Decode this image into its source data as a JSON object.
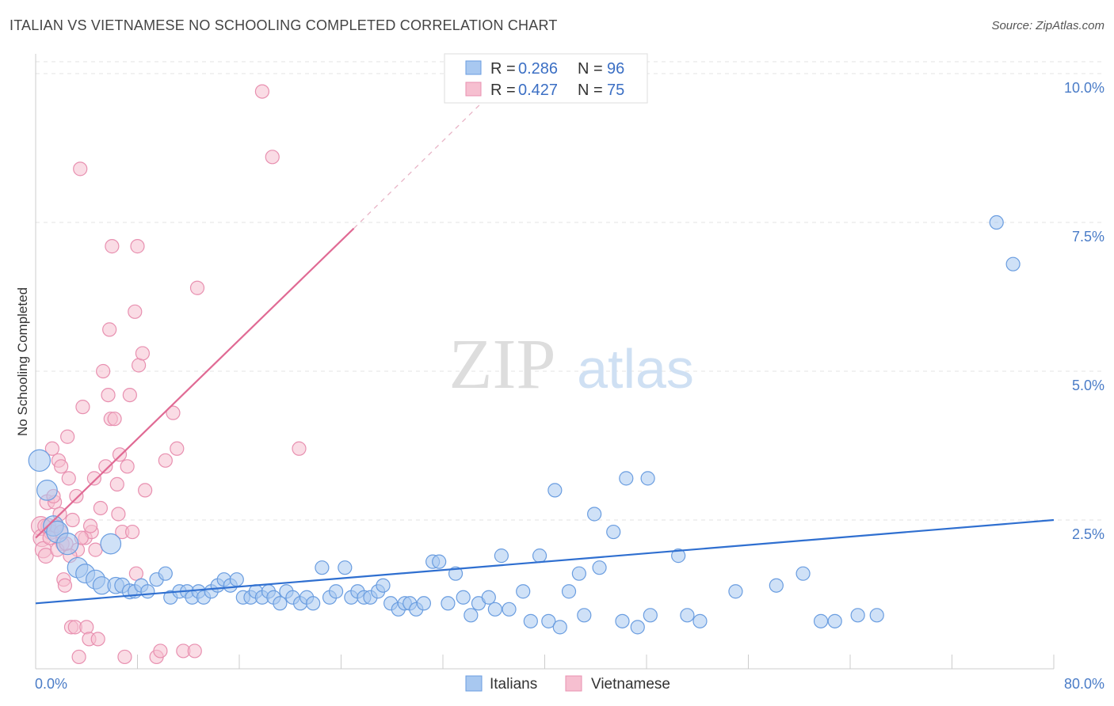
{
  "title": "ITALIAN VS VIETNAMESE NO SCHOOLING COMPLETED CORRELATION CHART",
  "source": "Source: ZipAtlas.com",
  "watermark": {
    "zip": "ZIP",
    "atlas": "atlas"
  },
  "colors": {
    "italians_fill": "#a8c8f0",
    "italians_stroke": "#6a9de0",
    "italians_line": "#2f6fd0",
    "vietnamese_fill": "#f6bfd0",
    "vietnamese_stroke": "#e890b0",
    "vietnamese_line": "#e06a94",
    "axis_label": "#4a7cc7"
  },
  "legend_top": {
    "rows": [
      {
        "r_label": "R =",
        "r_value": "0.286",
        "n_label": "N =",
        "n_value": "96"
      },
      {
        "r_label": "R =",
        "r_value": "0.427",
        "n_label": "N =",
        "n_value": "75"
      }
    ]
  },
  "legend_bottom": [
    "Italians",
    "Vietnamese"
  ],
  "chart_data": {
    "type": "scatter",
    "title": "ITALIAN VS VIETNAMESE NO SCHOOLING COMPLETED CORRELATION CHART",
    "ylabel": "No Schooling Completed",
    "xlim": [
      0,
      80
    ],
    "ylim": [
      0,
      10.2
    ],
    "x_tick_labels": [
      "0.0%",
      "80.0%"
    ],
    "y_tick_labels": [
      "2.5%",
      "5.0%",
      "7.5%",
      "10.0%"
    ],
    "y_ticks": [
      2.5,
      5.0,
      7.5,
      10.0
    ],
    "grid": true,
    "legend_position": "top-center",
    "series": [
      {
        "name": "Italians",
        "R": 0.286,
        "N": 96,
        "trend": {
          "x0": 0,
          "y0": 1.1,
          "x1": 80,
          "y1": 2.5,
          "dashed_after": null
        },
        "points": [
          [
            0.3,
            3.5,
            1.6
          ],
          [
            0.9,
            3.0,
            1.5
          ],
          [
            1.4,
            2.4,
            1.5
          ],
          [
            1.7,
            2.3,
            1.6
          ],
          [
            2.5,
            2.1,
            1.6
          ],
          [
            3.3,
            1.7,
            1.5
          ],
          [
            5.9,
            2.1,
            1.5
          ],
          [
            3.9,
            1.6,
            1.4
          ],
          [
            4.7,
            1.5,
            1.4
          ],
          [
            5.2,
            1.4,
            1.3
          ],
          [
            6.3,
            1.4,
            1.2
          ],
          [
            6.8,
            1.4,
            1.1
          ],
          [
            7.4,
            1.3,
            1.1
          ],
          [
            7.8,
            1.3,
            1.0
          ],
          [
            8.3,
            1.4,
            1.0
          ],
          [
            8.8,
            1.3,
            1.0
          ],
          [
            9.5,
            1.5,
            1.0
          ],
          [
            10.2,
            1.6,
            1.0
          ],
          [
            10.6,
            1.2,
            1.0
          ],
          [
            11.3,
            1.3,
            1.0
          ],
          [
            11.9,
            1.3,
            1.0
          ],
          [
            12.3,
            1.2,
            1.0
          ],
          [
            12.8,
            1.3,
            1.0
          ],
          [
            13.2,
            1.2,
            1.0
          ],
          [
            13.8,
            1.3,
            1.0
          ],
          [
            14.3,
            1.4,
            1.0
          ],
          [
            14.8,
            1.5,
            1.0
          ],
          [
            15.3,
            1.4,
            1.0
          ],
          [
            15.8,
            1.5,
            1.0
          ],
          [
            16.3,
            1.2,
            1.0
          ],
          [
            16.9,
            1.2,
            1.0
          ],
          [
            17.3,
            1.3,
            1.0
          ],
          [
            17.8,
            1.2,
            1.0
          ],
          [
            18.3,
            1.3,
            1.0
          ],
          [
            18.7,
            1.2,
            1.0
          ],
          [
            19.2,
            1.1,
            1.0
          ],
          [
            19.7,
            1.3,
            1.0
          ],
          [
            20.2,
            1.2,
            1.0
          ],
          [
            20.8,
            1.1,
            1.0
          ],
          [
            21.3,
            1.2,
            1.0
          ],
          [
            21.8,
            1.1,
            1.0
          ],
          [
            22.5,
            1.7,
            1.0
          ],
          [
            23.1,
            1.2,
            1.0
          ],
          [
            23.6,
            1.3,
            1.0
          ],
          [
            24.3,
            1.7,
            1.0
          ],
          [
            24.8,
            1.2,
            1.0
          ],
          [
            25.3,
            1.3,
            1.0
          ],
          [
            25.8,
            1.2,
            1.0
          ],
          [
            26.3,
            1.2,
            1.0
          ],
          [
            26.9,
            1.3,
            1.0
          ],
          [
            27.3,
            1.4,
            1.0
          ],
          [
            27.9,
            1.1,
            1.0
          ],
          [
            28.5,
            1.0,
            1.0
          ],
          [
            29.0,
            1.1,
            1.0
          ],
          [
            29.4,
            1.1,
            1.0
          ],
          [
            29.9,
            1.0,
            1.0
          ],
          [
            30.5,
            1.1,
            1.0
          ],
          [
            31.2,
            1.8,
            1.0
          ],
          [
            31.7,
            1.8,
            1.0
          ],
          [
            32.4,
            1.1,
            1.0
          ],
          [
            33.0,
            1.6,
            1.0
          ],
          [
            33.6,
            1.2,
            1.0
          ],
          [
            34.2,
            0.9,
            1.0
          ],
          [
            34.8,
            1.1,
            1.0
          ],
          [
            35.6,
            1.2,
            1.0
          ],
          [
            36.1,
            1.0,
            1.0
          ],
          [
            36.6,
            1.9,
            1.0
          ],
          [
            37.2,
            1.0,
            1.0
          ],
          [
            38.3,
            1.3,
            1.0
          ],
          [
            38.9,
            0.8,
            1.0
          ],
          [
            39.6,
            1.9,
            1.0
          ],
          [
            40.3,
            0.8,
            1.0
          ],
          [
            41.2,
            0.7,
            1.0
          ],
          [
            41.9,
            1.3,
            1.0
          ],
          [
            42.7,
            1.6,
            1.0
          ],
          [
            43.1,
            0.9,
            1.0
          ],
          [
            44.3,
            1.7,
            1.0
          ],
          [
            45.4,
            2.3,
            1.0
          ],
          [
            46.1,
            0.8,
            1.0
          ],
          [
            47.3,
            0.7,
            1.0
          ],
          [
            48.3,
            0.9,
            1.0
          ],
          [
            50.5,
            1.9,
            1.0
          ],
          [
            51.2,
            0.9,
            1.0
          ],
          [
            52.2,
            0.8,
            1.0
          ],
          [
            55.0,
            1.3,
            1.0
          ],
          [
            58.2,
            1.4,
            1.0
          ],
          [
            60.3,
            1.6,
            1.0
          ],
          [
            61.7,
            0.8,
            1.0
          ],
          [
            62.8,
            0.8,
            1.0
          ],
          [
            64.6,
            0.9,
            1.0
          ],
          [
            66.1,
            0.9,
            1.0
          ],
          [
            40.8,
            3.0,
            1.0
          ],
          [
            43.9,
            2.6,
            1.0
          ],
          [
            46.4,
            3.2,
            1.0
          ],
          [
            48.1,
            3.2,
            1.0
          ],
          [
            75.5,
            7.5,
            1.0
          ],
          [
            76.8,
            6.8,
            1.0
          ]
        ]
      },
      {
        "name": "Vietnamese",
        "R": 0.427,
        "N": 75,
        "trend": {
          "x0": 0,
          "y0": 2.2,
          "x1": 25,
          "y1": 7.4,
          "dashed_to": [
            35,
            9.5
          ]
        },
        "points": [
          [
            0.4,
            2.4,
            1.4
          ],
          [
            0.5,
            2.2,
            1.3
          ],
          [
            0.6,
            2.0,
            1.2
          ],
          [
            0.8,
            1.9,
            1.1
          ],
          [
            0.9,
            2.8,
            1.1
          ],
          [
            1.0,
            2.4,
            1.1
          ],
          [
            1.2,
            2.3,
            1.1
          ],
          [
            1.3,
            3.7,
            1.0
          ],
          [
            1.5,
            2.8,
            1.0
          ],
          [
            1.6,
            2.4,
            1.0
          ],
          [
            1.8,
            3.5,
            1.0
          ],
          [
            2.0,
            3.4,
            1.0
          ],
          [
            2.1,
            2.1,
            1.0
          ],
          [
            2.2,
            1.5,
            1.0
          ],
          [
            2.3,
            1.4,
            1.0
          ],
          [
            2.5,
            3.9,
            1.0
          ],
          [
            2.6,
            3.2,
            1.0
          ],
          [
            2.8,
            0.7,
            1.0
          ],
          [
            2.9,
            2.5,
            1.0
          ],
          [
            3.1,
            0.7,
            1.0
          ],
          [
            3.2,
            2.9,
            1.0
          ],
          [
            3.3,
            2.0,
            1.0
          ],
          [
            3.4,
            0.2,
            1.0
          ],
          [
            3.5,
            8.4,
            1.0
          ],
          [
            3.7,
            4.4,
            1.0
          ],
          [
            3.9,
            2.2,
            1.0
          ],
          [
            4.0,
            0.7,
            1.0
          ],
          [
            4.2,
            0.5,
            1.0
          ],
          [
            4.4,
            2.3,
            1.0
          ],
          [
            4.6,
            3.2,
            1.0
          ],
          [
            4.7,
            2.0,
            1.0
          ],
          [
            4.9,
            0.5,
            1.0
          ],
          [
            5.1,
            2.7,
            1.0
          ],
          [
            5.3,
            5.0,
            1.0
          ],
          [
            5.5,
            3.4,
            1.0
          ],
          [
            5.7,
            4.6,
            1.0
          ],
          [
            5.9,
            4.2,
            1.0
          ],
          [
            5.8,
            5.7,
            1.0
          ],
          [
            6.0,
            7.1,
            1.0
          ],
          [
            6.2,
            4.2,
            1.0
          ],
          [
            6.4,
            3.1,
            1.0
          ],
          [
            6.5,
            2.6,
            1.0
          ],
          [
            6.6,
            3.6,
            1.0
          ],
          [
            6.8,
            2.3,
            1.0
          ],
          [
            7.0,
            0.2,
            1.0
          ],
          [
            7.2,
            3.4,
            1.0
          ],
          [
            7.4,
            4.6,
            1.0
          ],
          [
            7.6,
            2.3,
            1.0
          ],
          [
            7.8,
            6.0,
            1.0
          ],
          [
            7.9,
            1.6,
            1.0
          ],
          [
            8.0,
            7.1,
            1.0
          ],
          [
            8.1,
            5.1,
            1.0
          ],
          [
            8.4,
            5.3,
            1.0
          ],
          [
            8.6,
            3.0,
            1.0
          ],
          [
            9.5,
            0.2,
            1.0
          ],
          [
            9.8,
            0.3,
            1.0
          ],
          [
            10.2,
            3.5,
            1.0
          ],
          [
            10.8,
            4.3,
            1.0
          ],
          [
            11.1,
            3.7,
            1.0
          ],
          [
            11.6,
            0.3,
            1.0
          ],
          [
            12.5,
            0.3,
            1.0
          ],
          [
            12.7,
            6.4,
            1.0
          ],
          [
            17.8,
            9.7,
            1.0
          ],
          [
            18.6,
            8.6,
            1.0
          ],
          [
            20.7,
            3.7,
            1.0
          ],
          [
            1.7,
            2.0,
            1.0
          ],
          [
            2.4,
            2.1,
            1.0
          ],
          [
            0.7,
            2.4,
            1.0
          ],
          [
            1.1,
            2.2,
            1.0
          ],
          [
            1.9,
            2.6,
            1.0
          ],
          [
            2.7,
            1.9,
            1.0
          ],
          [
            3.6,
            2.2,
            1.0
          ],
          [
            4.3,
            2.4,
            1.0
          ],
          [
            1.4,
            2.9,
            1.0
          ],
          [
            2.0,
            2.3,
            1.0
          ]
        ]
      }
    ]
  }
}
